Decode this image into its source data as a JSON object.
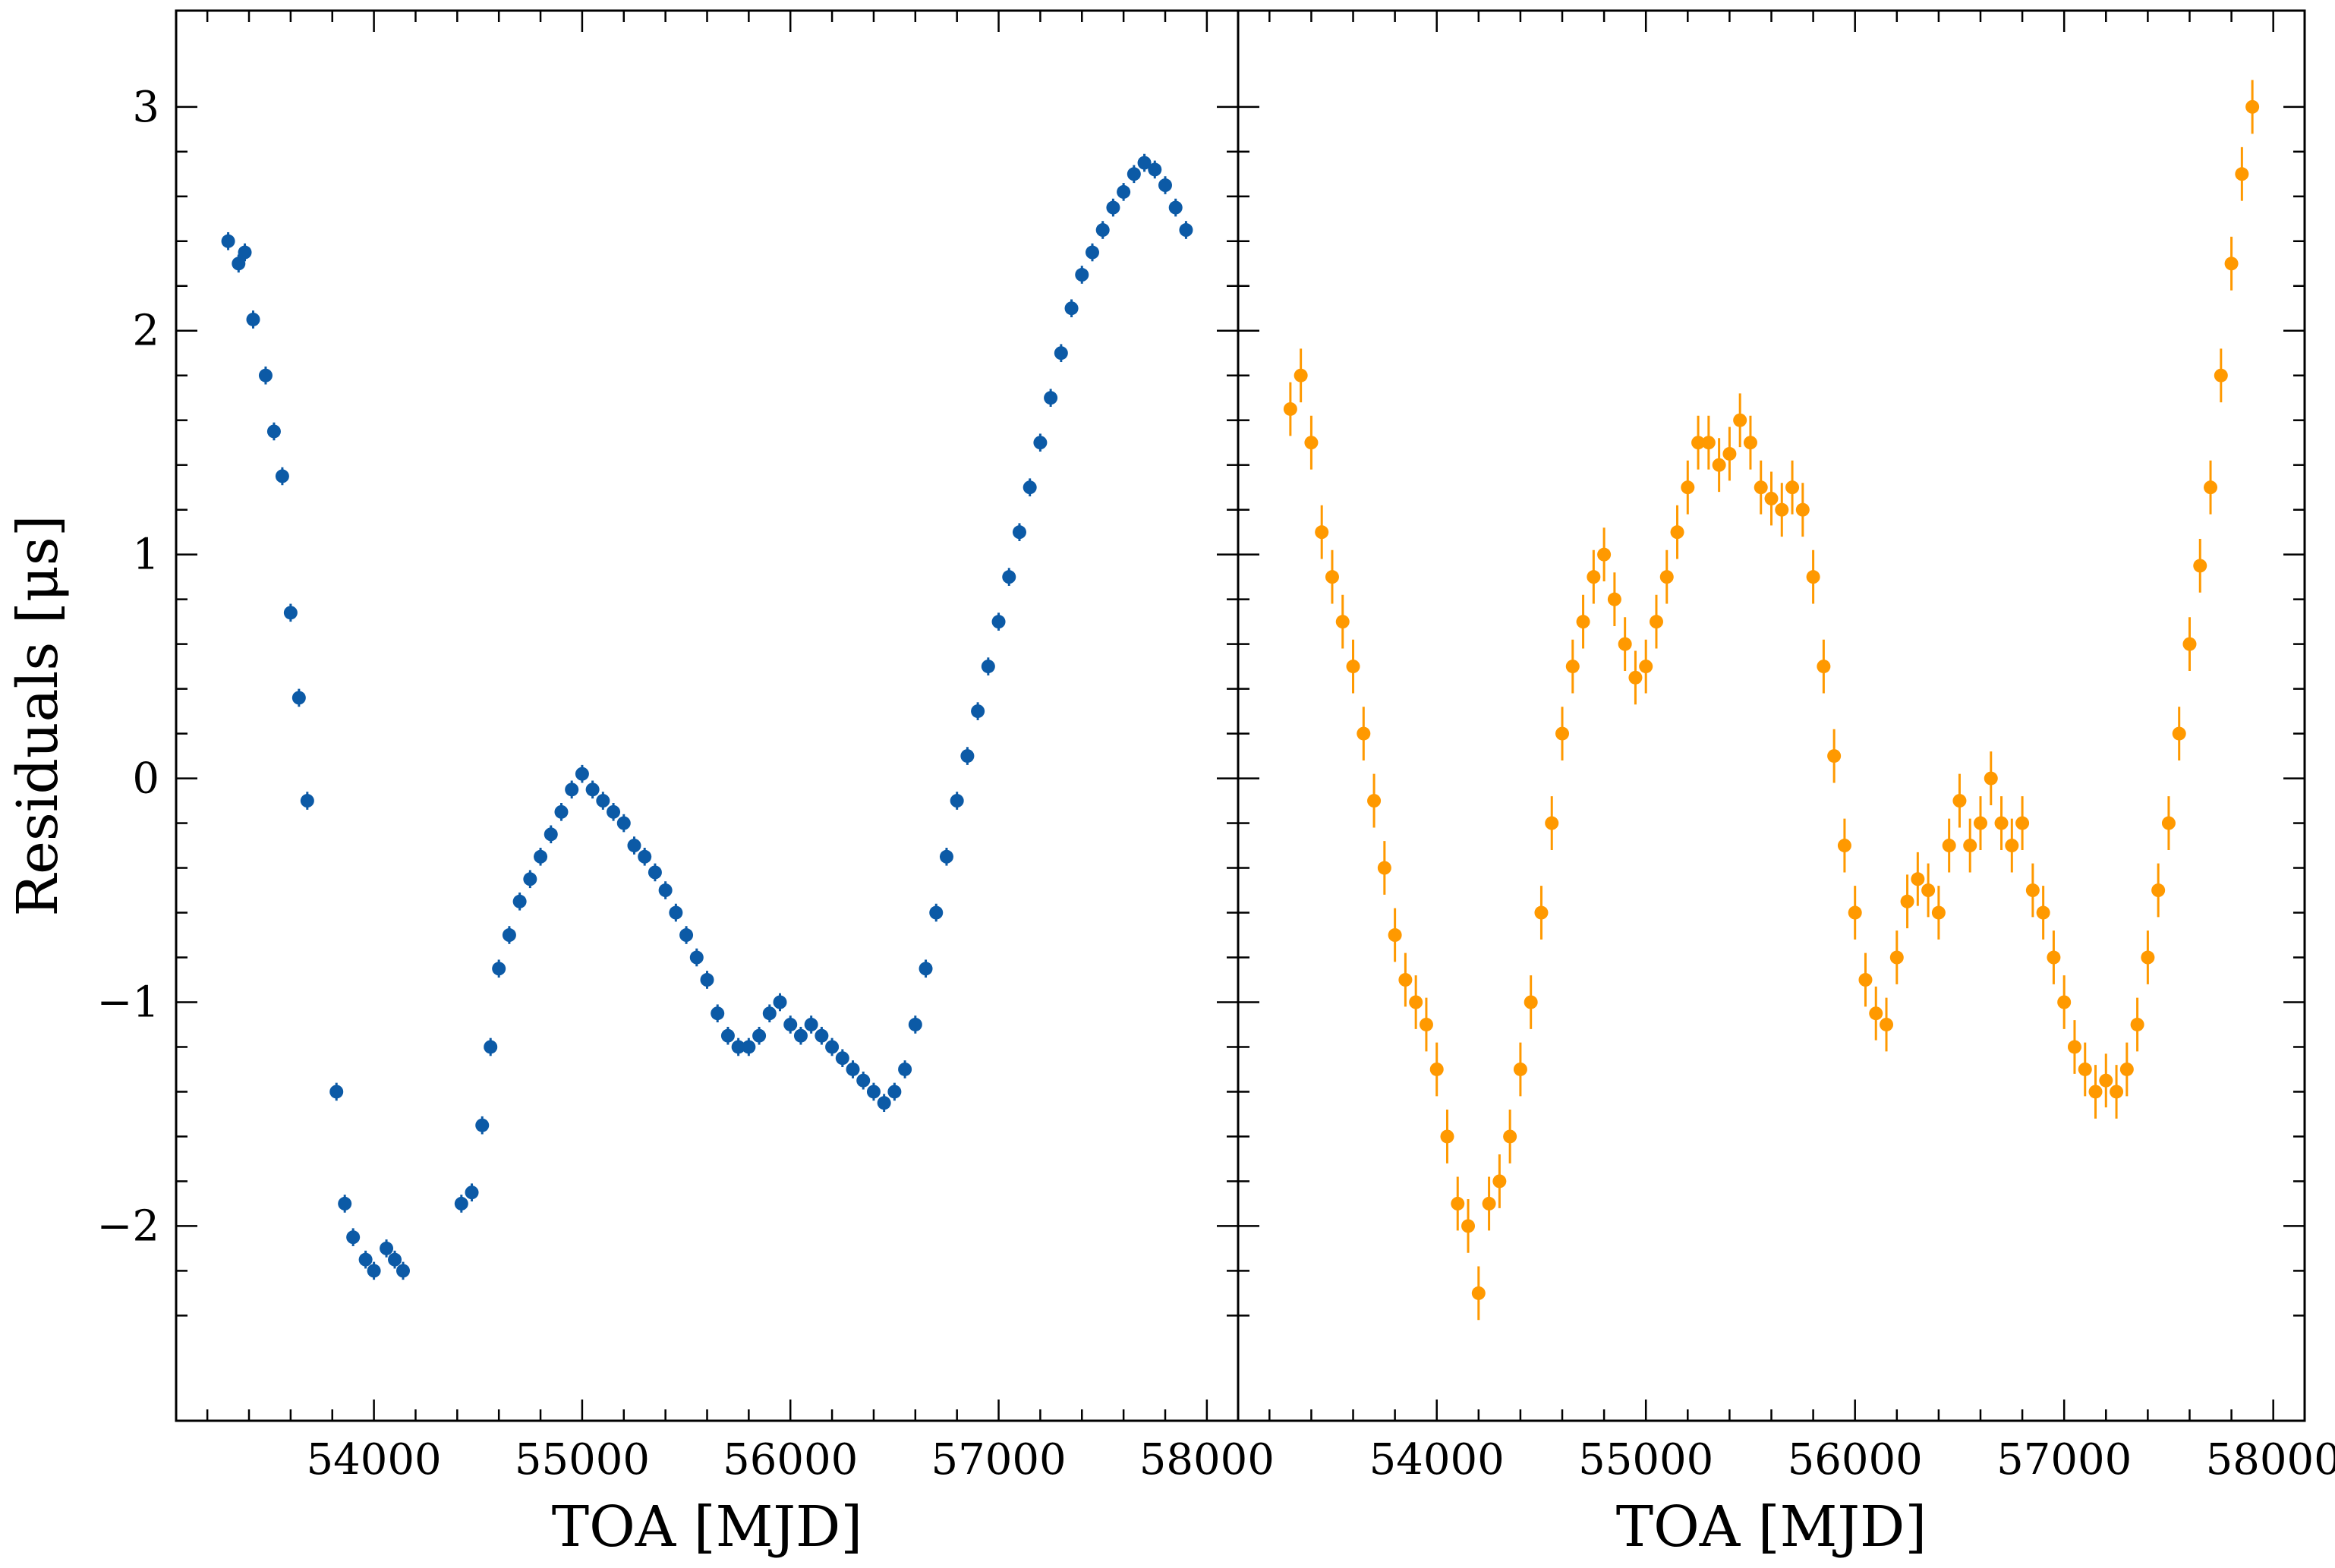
{
  "chart_data": [
    {
      "type": "scatter",
      "panel": "left",
      "xlabel": "TOA [MJD]",
      "ylabel": "Residuals [μs]",
      "xlim": [
        53050,
        58150
      ],
      "ylim": [
        -2.87,
        3.43
      ],
      "xticks": [
        54000,
        55000,
        56000,
        57000,
        58000
      ],
      "xtick_labels": [
        "54000",
        "55000",
        "56000",
        "57000",
        "58000"
      ],
      "yticks": [
        -2,
        -1,
        0,
        1,
        2,
        3
      ],
      "ytick_labels": [
        "−2",
        "−1",
        "0",
        "1",
        "2",
        "3"
      ],
      "color": "#0c5aa6",
      "grid": false,
      "error_bars": true,
      "x": [
        53300,
        53350,
        53380,
        53420,
        53480,
        53520,
        53560,
        53600,
        53640,
        53680,
        53820,
        53860,
        53900,
        53960,
        54000,
        54060,
        54100,
        54140,
        54420,
        54470,
        54520,
        54560,
        54600,
        54650,
        54700,
        54750,
        54800,
        54850,
        54900,
        54950,
        55000,
        55050,
        55100,
        55150,
        55200,
        55250,
        55300,
        55350,
        55400,
        55450,
        55500,
        55550,
        55600,
        55650,
        55700,
        55750,
        55800,
        55850,
        55900,
        55950,
        56000,
        56050,
        56100,
        56150,
        56200,
        56250,
        56300,
        56350,
        56400,
        56450,
        56500,
        56550,
        56600,
        56650,
        56700,
        56750,
        56800,
        56850,
        56900,
        56950,
        57000,
        57050,
        57100,
        57150,
        57200,
        57250,
        57300,
        57350,
        57400,
        57450,
        57500,
        57550,
        57600,
        57650,
        57700,
        57750,
        57800,
        57850,
        57900
      ],
      "y": [
        2.4,
        2.3,
        2.35,
        2.05,
        1.8,
        1.55,
        1.35,
        0.74,
        0.36,
        -0.1,
        -1.4,
        -1.9,
        -2.05,
        -2.15,
        -2.2,
        -2.1,
        -2.15,
        -2.2,
        -1.9,
        -1.85,
        -1.55,
        -1.2,
        -0.85,
        -0.7,
        -0.55,
        -0.45,
        -0.35,
        -0.25,
        -0.15,
        -0.05,
        0.02,
        -0.05,
        -0.1,
        -0.15,
        -0.2,
        -0.3,
        -0.35,
        -0.42,
        -0.5,
        -0.6,
        -0.7,
        -0.8,
        -0.9,
        -1.05,
        -1.15,
        -1.2,
        -1.2,
        -1.15,
        -1.05,
        -1.0,
        -1.1,
        -1.15,
        -1.1,
        -1.15,
        -1.2,
        -1.25,
        -1.3,
        -1.35,
        -1.4,
        -1.45,
        -1.4,
        -1.3,
        -1.1,
        -0.85,
        -0.6,
        -0.35,
        -0.1,
        0.1,
        0.3,
        0.5,
        0.7,
        0.9,
        1.1,
        1.3,
        1.5,
        1.7,
        1.9,
        2.1,
        2.25,
        2.35,
        2.45,
        2.55,
        2.62,
        2.7,
        2.75,
        2.72,
        2.65,
        2.55,
        2.45
      ]
    },
    {
      "type": "scatter",
      "panel": "right",
      "xlabel": "TOA [MJD]",
      "ylabel": "",
      "xlim": [
        53050,
        58150
      ],
      "ylim": [
        -2.87,
        3.43
      ],
      "xticks": [
        54000,
        55000,
        56000,
        57000,
        58000
      ],
      "xtick_labels": [
        "54000",
        "55000",
        "56000",
        "57000",
        "58000"
      ],
      "color": "#ff9900",
      "grid": false,
      "error_bars": true,
      "x": [
        53300,
        53350,
        53400,
        53450,
        53500,
        53550,
        53600,
        53650,
        53700,
        53750,
        53800,
        53850,
        53900,
        53950,
        54000,
        54050,
        54100,
        54150,
        54200,
        54250,
        54300,
        54350,
        54400,
        54450,
        54500,
        54550,
        54600,
        54650,
        54700,
        54750,
        54800,
        54850,
        54900,
        54950,
        55000,
        55050,
        55100,
        55150,
        55200,
        55250,
        55300,
        55350,
        55400,
        55450,
        55500,
        55550,
        55600,
        55650,
        55700,
        55750,
        55800,
        55850,
        55900,
        55950,
        56000,
        56050,
        56100,
        56150,
        56200,
        56250,
        56300,
        56350,
        56400,
        56450,
        56500,
        56550,
        56600,
        56650,
        56700,
        56750,
        56800,
        56850,
        56900,
        56950,
        57000,
        57050,
        57100,
        57150,
        57200,
        57250,
        57300,
        57350,
        57400,
        57450,
        57500,
        57550,
        57600,
        57650,
        57700,
        57750,
        57800,
        57850,
        57900
      ],
      "y": [
        1.65,
        1.8,
        1.5,
        1.1,
        0.9,
        0.7,
        0.5,
        0.2,
        -0.1,
        -0.4,
        -0.7,
        -0.9,
        -1.0,
        -1.1,
        -1.3,
        -1.6,
        -1.9,
        -2.0,
        -2.3,
        -1.9,
        -1.8,
        -1.6,
        -1.3,
        -1.0,
        -0.6,
        -0.2,
        0.2,
        0.5,
        0.7,
        0.9,
        1.0,
        0.8,
        0.6,
        0.45,
        0.5,
        0.7,
        0.9,
        1.1,
        1.3,
        1.5,
        1.5,
        1.4,
        1.45,
        1.6,
        1.5,
        1.3,
        1.25,
        1.2,
        1.3,
        1.2,
        0.9,
        0.5,
        0.1,
        -0.3,
        -0.6,
        -0.9,
        -1.05,
        -1.1,
        -0.8,
        -0.55,
        -0.45,
        -0.5,
        -0.6,
        -0.3,
        -0.1,
        -0.3,
        -0.2,
        0.0,
        -0.2,
        -0.3,
        -0.2,
        -0.5,
        -0.6,
        -0.8,
        -1.0,
        -1.2,
        -1.3,
        -1.4,
        -1.35,
        -1.4,
        -1.3,
        -1.1,
        -0.8,
        -0.5,
        -0.2,
        0.2,
        0.6,
        0.95,
        1.3,
        1.8,
        2.3,
        2.7,
        3.0
      ]
    }
  ]
}
